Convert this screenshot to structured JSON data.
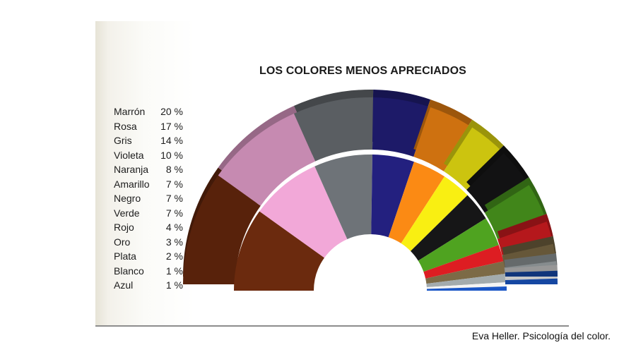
{
  "chart_data": {
    "type": "pie",
    "title": "LOS COLORES MENOS APRECIADOS",
    "unit": "%",
    "categories": [
      "Marrón",
      "Rosa",
      "Gris",
      "Violeta",
      "Naranja",
      "Amarillo",
      "Negro",
      "Verde",
      "Rojo",
      "Oro",
      "Plata",
      "Blanco",
      "Azul"
    ],
    "values": [
      20,
      17,
      14,
      10,
      8,
      7,
      7,
      7,
      4,
      3,
      2,
      1,
      1
    ],
    "labels": [
      "20 %",
      "17 %",
      "14 %",
      "10 %",
      "8 %",
      "7 %",
      "7 %",
      "7 %",
      "4 %",
      "3 %",
      "2 %",
      "1 %",
      "1 %"
    ],
    "colors": [
      "#6b2a0e",
      "#f2a8d8",
      "#6e7378",
      "#23207f",
      "#fb8a14",
      "#f9ef12",
      "#161617",
      "#4fa320",
      "#dd1d22",
      "#7c6a46",
      "#a3abad",
      "#f4f4f4",
      "#1a56c6"
    ],
    "legend_position": "left"
  },
  "footer": {
    "credit": "Eva Heller. Psicología del color."
  }
}
